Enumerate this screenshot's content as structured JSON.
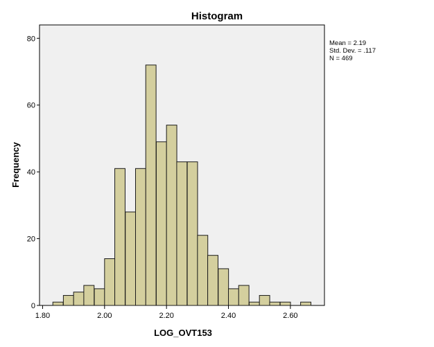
{
  "chart_data": {
    "type": "bar",
    "title": "Histogram",
    "xlabel": "LOG_OVT153",
    "ylabel": "Frequency",
    "xlim": [
      1.79,
      2.71
    ],
    "ylim": [
      0,
      84
    ],
    "x_ticks": [
      {
        "value": 1.8,
        "label": "1.80"
      },
      {
        "value": 2.0,
        "label": "2.00"
      },
      {
        "value": 2.2,
        "label": "2.20"
      },
      {
        "value": 2.4,
        "label": "2.40"
      },
      {
        "value": 2.6,
        "label": "2.60"
      }
    ],
    "y_ticks": [
      {
        "value": 0,
        "label": "0"
      },
      {
        "value": 20,
        "label": "20"
      },
      {
        "value": 40,
        "label": "40"
      },
      {
        "value": 60,
        "label": "60"
      },
      {
        "value": 80,
        "label": "80"
      }
    ],
    "bin_width": 0.0333,
    "bins": [
      {
        "start": 1.833,
        "count": 1
      },
      {
        "start": 1.867,
        "count": 3
      },
      {
        "start": 1.9,
        "count": 4
      },
      {
        "start": 1.933,
        "count": 6
      },
      {
        "start": 1.967,
        "count": 5
      },
      {
        "start": 2.0,
        "count": 14
      },
      {
        "start": 2.033,
        "count": 41
      },
      {
        "start": 2.067,
        "count": 28
      },
      {
        "start": 2.1,
        "count": 41
      },
      {
        "start": 2.133,
        "count": 72
      },
      {
        "start": 2.167,
        "count": 49
      },
      {
        "start": 2.2,
        "count": 54
      },
      {
        "start": 2.233,
        "count": 43
      },
      {
        "start": 2.267,
        "count": 43
      },
      {
        "start": 2.3,
        "count": 21
      },
      {
        "start": 2.333,
        "count": 15
      },
      {
        "start": 2.367,
        "count": 11
      },
      {
        "start": 2.4,
        "count": 5
      },
      {
        "start": 2.433,
        "count": 6
      },
      {
        "start": 2.467,
        "count": 1
      },
      {
        "start": 2.5,
        "count": 3
      },
      {
        "start": 2.533,
        "count": 1
      },
      {
        "start": 2.567,
        "count": 1
      },
      {
        "start": 2.6,
        "count": 0
      },
      {
        "start": 2.633,
        "count": 1
      }
    ],
    "stats": {
      "mean": "Mean = 2.19",
      "std_dev": "Std. Dev. = .117",
      "n": "N = 469"
    },
    "colors": {
      "bar_fill": "#d4cf9e",
      "bar_stroke": "#1a1a1a",
      "plot_bg": "#f0f0f0"
    },
    "grid": false
  }
}
